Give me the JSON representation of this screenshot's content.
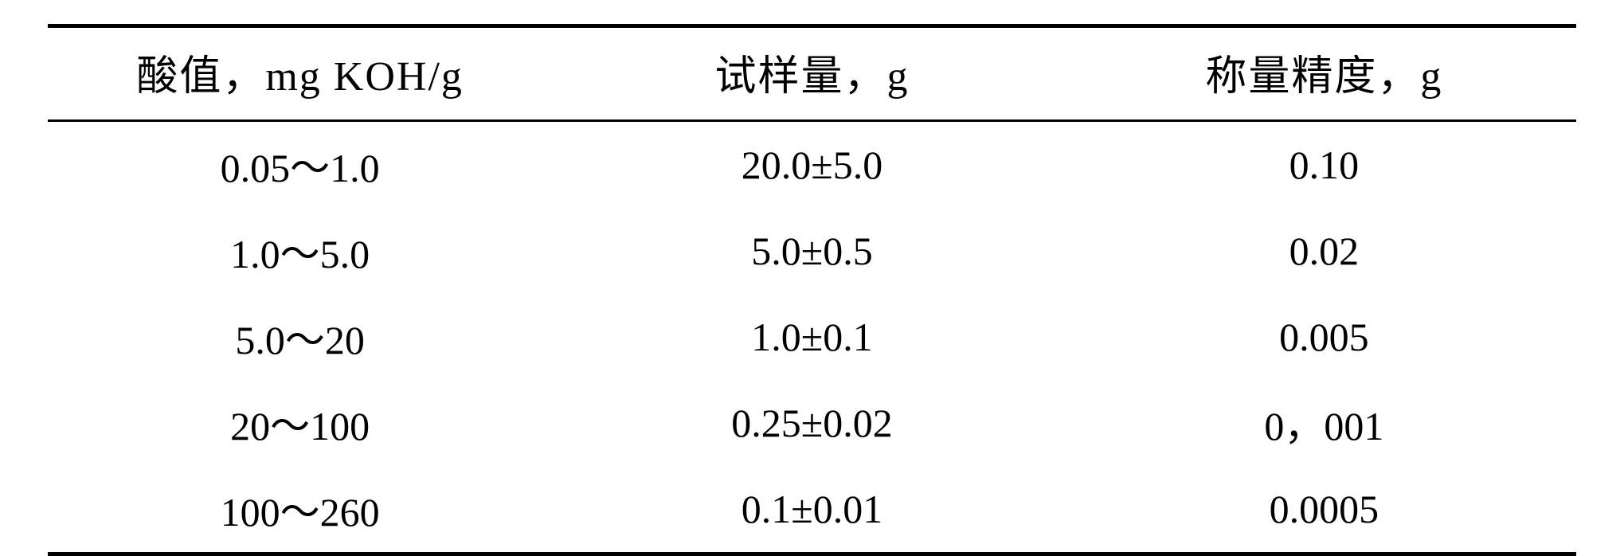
{
  "table": {
    "columns": [
      "酸值，mg KOH/g",
      "试样量，g",
      "称量精度，g"
    ],
    "rows": [
      [
        "0.05～1.0",
        "20.0±5.0",
        "0.10"
      ],
      [
        "1.0～5.0",
        "5.0±0.5",
        "0.02"
      ],
      [
        "5.0～20",
        "1.0±0.1",
        "0.005"
      ],
      [
        "20～100",
        "0.25±0.02",
        "0，001"
      ],
      [
        "100～260",
        "0.1±0.01",
        "0.0005"
      ]
    ],
    "border_color": "#000000",
    "background_color": "#ffffff",
    "text_color": "#000000",
    "header_fontsize": 52,
    "body_fontsize": 50,
    "top_bottom_rule_width": 5,
    "header_rule_width": 3
  }
}
